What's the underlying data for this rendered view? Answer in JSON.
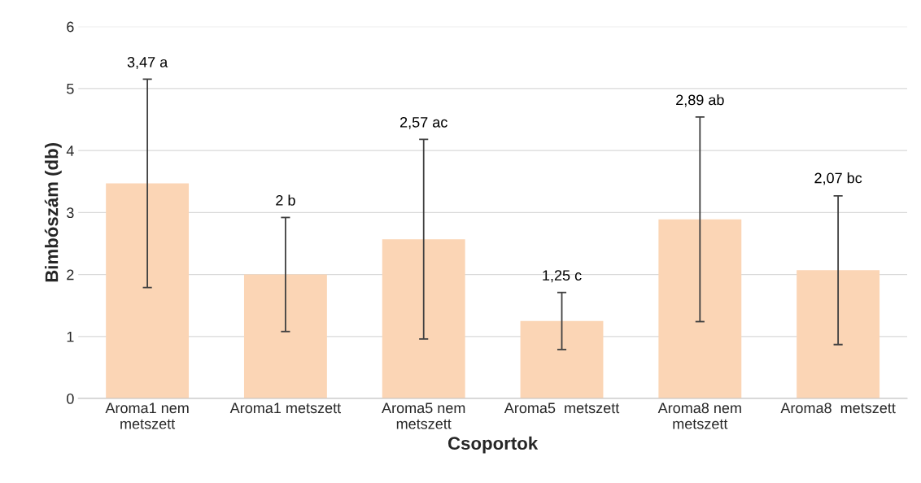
{
  "chart_data": {
    "type": "bar",
    "xlabel": "Csoportok",
    "ylabel": "Bimbószám (db)",
    "categories": [
      "Aroma1 nem\nmetszett",
      "Aroma1 metszett",
      "Aroma5 nem\nmetszett",
      "Aroma5  metszett",
      "Aroma8 nem\nmetszett",
      "Aroma8  metszett"
    ],
    "values": [
      3.47,
      2,
      2.57,
      1.25,
      2.89,
      2.07
    ],
    "errors": [
      1.68,
      0.92,
      1.61,
      0.46,
      1.65,
      1.2
    ],
    "annotations": [
      {
        "text": "3,47 a",
        "x": "Aroma1 nem\nmetszett",
        "y": 5.15
      },
      {
        "text": "2 b",
        "x": "Aroma1 metszett",
        "y": 2.92
      },
      {
        "text": "2,57 ac",
        "x": "Aroma5 nem\nmetszett",
        "y": 4.18
      },
      {
        "text": "1,25 c",
        "x": "Aroma5  metszett",
        "y": 1.71
      },
      {
        "text": "2,89 ab",
        "x": "Aroma8 nem\nmetszett",
        "y": 4.54
      },
      {
        "text": "2,07 bc",
        "x": "Aroma8  metszett",
        "y": 3.28
      }
    ],
    "color": "#fbd5b5",
    "ylim": [
      0,
      6
    ],
    "yticks": [
      0,
      1,
      2,
      3,
      4,
      5,
      6
    ],
    "grid": "y",
    "legend": false
  }
}
